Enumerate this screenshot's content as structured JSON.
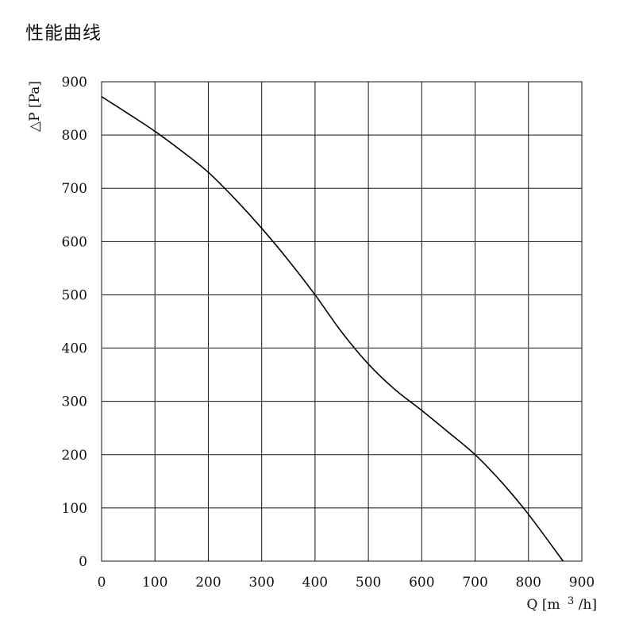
{
  "page": {
    "title": "性能曲线"
  },
  "chart_data": {
    "type": "line",
    "ylabel": "△P [Pa]",
    "xlabel_parts": {
      "prefix": "Q [m",
      "superscript": "3",
      "suffix": "/h]"
    },
    "xlim": [
      0,
      900
    ],
    "ylim": [
      0,
      900
    ],
    "xticks": [
      0,
      100,
      200,
      300,
      400,
      500,
      600,
      700,
      800,
      900
    ],
    "yticks": [
      0,
      100,
      200,
      300,
      400,
      500,
      600,
      700,
      800,
      900
    ],
    "grid": true,
    "series": [
      {
        "x": [
          0,
          50,
          100,
          150,
          200,
          250,
          300,
          350,
          400,
          450,
          500,
          550,
          600,
          650,
          700,
          750,
          800,
          865
        ],
        "y": [
          872,
          840,
          807,
          770,
          730,
          680,
          625,
          565,
          500,
          430,
          370,
          322,
          283,
          242,
          200,
          148,
          88,
          0
        ]
      }
    ]
  }
}
